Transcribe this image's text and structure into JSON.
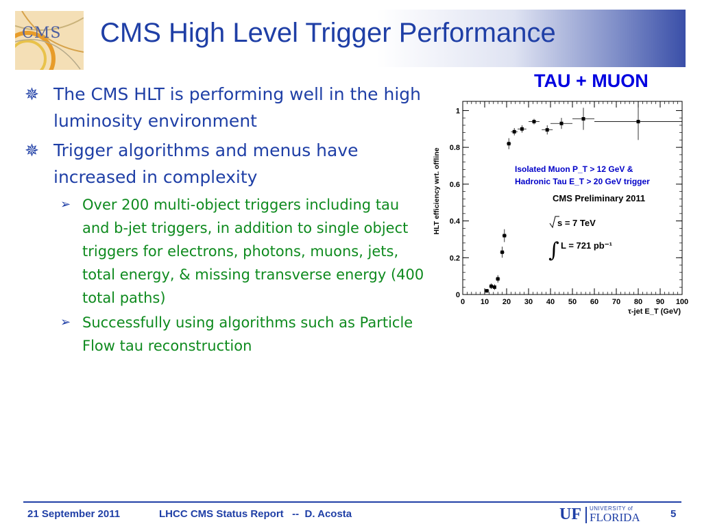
{
  "logo": {
    "text": "CMS"
  },
  "title": "CMS High Level Trigger Performance",
  "plot_label": "TAU + MUON",
  "bullets": [
    {
      "text": "The CMS HLT is performing well in the high luminosity environment"
    },
    {
      "text": "Trigger algorithms and menus have increased in complexity"
    }
  ],
  "sub_bullets": [
    {
      "text": "Over 200 multi-object triggers including tau and b-jet triggers, in addition to single object triggers for electrons, photons, muons, jets, total energy, & missing transverse energy (400 total paths)"
    },
    {
      "text": "Successfully using algorithms such as Particle Flow tau reconstruction"
    }
  ],
  "icons": {
    "bullet": "asterisk-bullet-icon",
    "sub_bullet": "chevron-right-icon"
  },
  "colors": {
    "title": "#1f3fa6",
    "sub_bullet_text": "#0e8a1e",
    "plot_label": "#0000e0",
    "annotation": "#0000c8"
  },
  "chart_data": {
    "type": "scatter",
    "xlabel": "τ-jet E_T (GeV)",
    "ylabel": "HLT efficiency wrt. offline",
    "xlim": [
      0,
      100
    ],
    "ylim": [
      0,
      1.05
    ],
    "xticks": [
      0,
      10,
      20,
      30,
      40,
      50,
      60,
      70,
      80,
      90,
      100
    ],
    "yticks": [
      0,
      0.2,
      0.4,
      0.6,
      0.8,
      1
    ],
    "annotations": {
      "trigger_line1": "Isolated Muon P_T > 12 GeV &",
      "trigger_line2": "Hadronic Tau E_T > 20 GeV trigger",
      "preliminary": "CMS Preliminary 2011",
      "energy": "s = 7 TeV",
      "luminosity": "L = 721 pb⁻¹"
    },
    "points": [
      {
        "x": 11,
        "y": 0.02,
        "xerr": 1,
        "yerr": 0.01
      },
      {
        "x": 13,
        "y": 0.045,
        "xerr": 1,
        "yerr": 0.015
      },
      {
        "x": 14.5,
        "y": 0.04,
        "xerr": 0.5,
        "yerr": 0.015
      },
      {
        "x": 16,
        "y": 0.085,
        "xerr": 1,
        "yerr": 0.02
      },
      {
        "x": 18,
        "y": 0.23,
        "xerr": 1,
        "yerr": 0.03
      },
      {
        "x": 19,
        "y": 0.32,
        "xerr": 1,
        "yerr": 0.035
      },
      {
        "x": 21,
        "y": 0.82,
        "xerr": 1,
        "yerr": 0.03
      },
      {
        "x": 23.5,
        "y": 0.885,
        "xerr": 1.5,
        "yerr": 0.02
      },
      {
        "x": 27,
        "y": 0.9,
        "xerr": 2,
        "yerr": 0.02
      },
      {
        "x": 32.5,
        "y": 0.94,
        "xerr": 2.5,
        "yerr": 0.015
      },
      {
        "x": 38.5,
        "y": 0.895,
        "xerr": 2.5,
        "yerr": 0.025
      },
      {
        "x": 45,
        "y": 0.93,
        "xerr": 5,
        "yerr": 0.03
      },
      {
        "x": 55,
        "y": 0.955,
        "xerr": 5,
        "yerr": 0.06
      },
      {
        "x": 80,
        "y": 0.94,
        "xerr": 20,
        "yerr": 0.1
      }
    ]
  },
  "footer": {
    "date": "21 September 2011",
    "report": "LHCC CMS Status Report   --  D. Acosta",
    "page": "5",
    "uf_short": "UF",
    "uf_university": "UNIVERSITY of",
    "uf_florida": "FLORIDA"
  }
}
